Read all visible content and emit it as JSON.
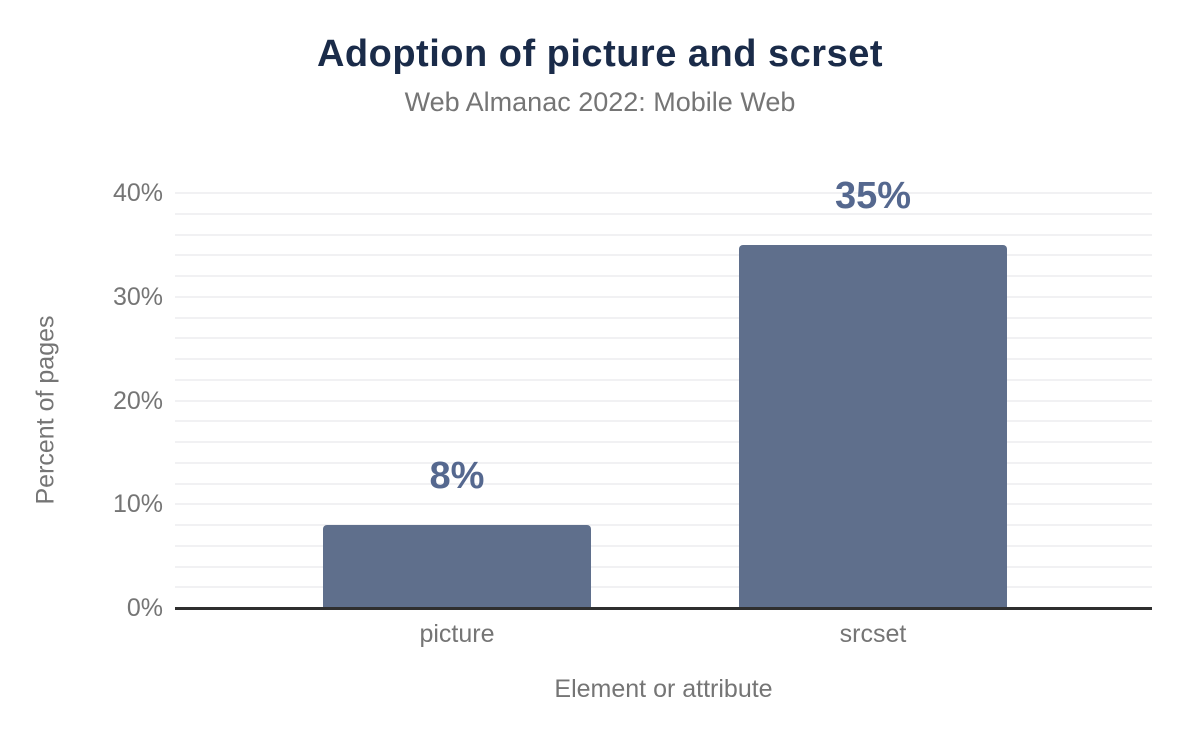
{
  "chart_data": {
    "type": "bar",
    "title": "Adoption of picture and scrset",
    "subtitle": "Web Almanac 2022: Mobile Web",
    "xlabel": "Element or attribute",
    "ylabel": "Percent of pages",
    "categories": [
      "picture",
      "srcset"
    ],
    "values": [
      8,
      35
    ],
    "data_labels": [
      "8%",
      "35%"
    ],
    "ylim": [
      0,
      40
    ],
    "y_major_step": 10,
    "y_minor_step": 2,
    "y_tick_suffix": "%",
    "grid": true,
    "legend": "none"
  },
  "colors": {
    "background": "#ffffff",
    "title": "#1a2b49",
    "muted_text": "#757575",
    "bar": "#5f6f8c",
    "data_label": "#55688f",
    "gridline": "#f1f1f3",
    "axis_line": "#2f2f2f"
  }
}
